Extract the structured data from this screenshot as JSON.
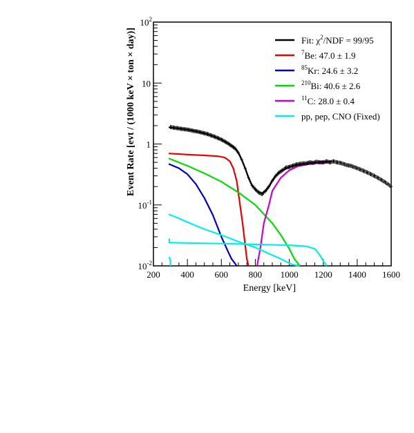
{
  "chart_data": {
    "type": "line",
    "title": "",
    "xlabel": "Energy [keV]",
    "ylabel": "Event Rate [evt / (1000 keV × ton × day)]",
    "xlim": [
      200,
      1600
    ],
    "ylim": [
      0.01,
      100
    ],
    "yscale": "log",
    "grid": false,
    "legend_position": "top-right",
    "x_ticks": [
      {
        "value": 200,
        "label": "200"
      },
      {
        "value": 400,
        "label": "400"
      },
      {
        "value": 600,
        "label": "600"
      },
      {
        "value": 800,
        "label": "800"
      },
      {
        "value": 1000,
        "label": "1000"
      },
      {
        "value": 1200,
        "label": "1200"
      },
      {
        "value": 1400,
        "label": "1400"
      },
      {
        "value": 1600,
        "label": "1600"
      }
    ],
    "y_ticks": [
      {
        "value": 0.01,
        "base": "10",
        "exp": "-2"
      },
      {
        "value": 0.1,
        "base": "10",
        "exp": "-1"
      },
      {
        "value": 1,
        "base": "1",
        "exp": ""
      },
      {
        "value": 10,
        "base": "10",
        "exp": ""
      },
      {
        "value": 100,
        "base": "10",
        "exp": "2"
      }
    ],
    "series": [
      {
        "id": "fit",
        "color": "#000000",
        "legend": {
          "pre": "Fit: χ",
          "sup": "2",
          "post": "/NDF = 99/95"
        },
        "x": [
          290,
          350,
          400,
          450,
          500,
          550,
          600,
          650,
          680,
          700,
          720,
          740,
          760,
          780,
          800,
          820,
          840,
          860,
          880,
          900,
          920,
          950,
          1000,
          1050,
          1100,
          1150,
          1200,
          1250
        ],
        "y": [
          1.88,
          1.8,
          1.72,
          1.62,
          1.5,
          1.35,
          1.18,
          0.98,
          0.85,
          0.72,
          0.55,
          0.4,
          0.28,
          0.21,
          0.18,
          0.16,
          0.155,
          0.17,
          0.2,
          0.25,
          0.3,
          0.36,
          0.42,
          0.46,
          0.48,
          0.5,
          0.51,
          0.52
        ]
      },
      {
        "id": "be7",
        "color": "#e80000",
        "legend": {
          "pre": "",
          "sup": "7",
          "post": "Be: 47.0 ± 1.9"
        },
        "x": [
          290,
          400,
          500,
          580,
          620,
          650,
          670,
          690,
          710,
          725,
          740,
          750,
          760
        ],
        "y": [
          0.7,
          0.67,
          0.65,
          0.63,
          0.6,
          0.52,
          0.4,
          0.25,
          0.1,
          0.05,
          0.022,
          0.013,
          0.01
        ]
      },
      {
        "id": "kr85",
        "color": "#0000cc",
        "legend": {
          "pre": "",
          "sup": "85",
          "post": "Kr: 24.6 ± 3.2"
        },
        "x": [
          290,
          350,
          400,
          450,
          500,
          550,
          600,
          640,
          660,
          680,
          690
        ],
        "y": [
          0.47,
          0.4,
          0.32,
          0.22,
          0.13,
          0.068,
          0.03,
          0.017,
          0.013,
          0.011,
          0.01
        ]
      },
      {
        "id": "bi210",
        "color": "#00dd00",
        "legend": {
          "pre": "",
          "sup": "210",
          "post": "Bi: 40.6 ± 2.6"
        },
        "x": [
          290,
          400,
          500,
          600,
          700,
          800,
          900,
          950,
          1000,
          1030,
          1050,
          1060
        ],
        "y": [
          0.58,
          0.44,
          0.33,
          0.24,
          0.16,
          0.1,
          0.05,
          0.032,
          0.019,
          0.013,
          0.011,
          0.01
        ]
      },
      {
        "id": "c11",
        "color": "#cc00cc",
        "legend": {
          "pre": "",
          "sup": "11",
          "post": "C: 28.0 ± 0.4"
        },
        "x": [
          810,
          830,
          850,
          880,
          900,
          950,
          1000,
          1050,
          1100,
          1150,
          1200,
          1240
        ],
        "y": [
          0.01,
          0.02,
          0.05,
          0.1,
          0.17,
          0.28,
          0.37,
          0.43,
          0.46,
          0.48,
          0.49,
          0.5
        ]
      },
      {
        "id": "pp_pep_cno_1",
        "color": "#00eeee",
        "legend": {
          "pre": "",
          "sup": "",
          "post": "pp, pep, CNO (Fixed)"
        },
        "x": [
          290,
          350,
          400,
          500,
          600,
          700,
          800,
          900,
          950,
          1000,
          1020,
          1040,
          1060
        ],
        "y": [
          0.07,
          0.06,
          0.052,
          0.04,
          0.032,
          0.025,
          0.02,
          0.015,
          0.013,
          0.011,
          0.0105,
          0.0102,
          0.01
        ]
      },
      {
        "id": "pp_pep_cno_2",
        "color": "#00eeee",
        "x": [
          293,
          293,
          300,
          400,
          600,
          800,
          1000,
          1100,
          1150,
          1180,
          1200,
          1220
        ],
        "y": [
          0.028,
          0.024,
          0.024,
          0.0238,
          0.0232,
          0.0225,
          0.0218,
          0.021,
          0.019,
          0.015,
          0.012,
          0.01
        ]
      },
      {
        "id": "pp_pep_cno_3",
        "color": "#00eeee",
        "x": [
          293,
          300,
          300
        ],
        "y": [
          0.014,
          0.012,
          0.01
        ]
      }
    ],
    "data_points": {
      "color": "#000000",
      "x": [
        300,
        320,
        340,
        360,
        380,
        400,
        420,
        440,
        460,
        480,
        500,
        520,
        540,
        560,
        580,
        600,
        620,
        640,
        660,
        680,
        700,
        720,
        740,
        760,
        780,
        800,
        820,
        840,
        860,
        880,
        900,
        920,
        940,
        960,
        980,
        1000,
        1020,
        1040,
        1060,
        1080,
        1100,
        1120,
        1140,
        1160,
        1180,
        1200,
        1220,
        1240,
        1260,
        1280,
        1300,
        1320,
        1340,
        1360,
        1380,
        1400,
        1420,
        1440,
        1460,
        1480,
        1500,
        1520,
        1540,
        1560,
        1580,
        1600
      ],
      "y": [
        1.9,
        1.85,
        1.82,
        1.78,
        1.75,
        1.72,
        1.68,
        1.63,
        1.6,
        1.55,
        1.5,
        1.45,
        1.38,
        1.32,
        1.25,
        1.18,
        1.1,
        1.02,
        0.93,
        0.85,
        0.72,
        0.55,
        0.4,
        0.28,
        0.21,
        0.18,
        0.16,
        0.15,
        0.17,
        0.2,
        0.25,
        0.3,
        0.34,
        0.37,
        0.41,
        0.42,
        0.44,
        0.46,
        0.47,
        0.48,
        0.48,
        0.5,
        0.49,
        0.51,
        0.5,
        0.5,
        0.52,
        0.5,
        0.52,
        0.5,
        0.49,
        0.47,
        0.45,
        0.44,
        0.42,
        0.4,
        0.38,
        0.36,
        0.34,
        0.32,
        0.3,
        0.28,
        0.26,
        0.24,
        0.22,
        0.2
      ]
    }
  }
}
